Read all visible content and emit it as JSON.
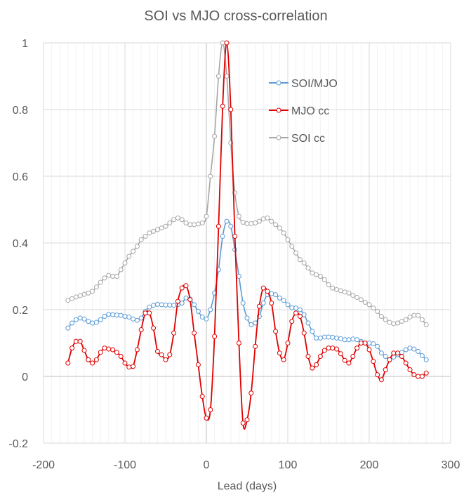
{
  "chart_data": {
    "type": "line",
    "title": "SOI vs MJO cross-correlation",
    "xlabel": "Lead (days)",
    "ylabel": "",
    "xlim": [
      -200,
      300
    ],
    "ylim": [
      -0.2,
      1
    ],
    "x_ticks": [
      "-200",
      "-100",
      "0",
      "100",
      "200",
      "300"
    ],
    "y_ticks": [
      "-0.2",
      "0",
      "0.2",
      "0.4",
      "0.6",
      "0.8",
      "1"
    ],
    "legend_position": "upper-right",
    "grid": true,
    "series": [
      {
        "name": "SOI/MJO",
        "color": "#5B9BD5",
        "x": [
          -170,
          -165,
          -160,
          -155,
          -150,
          -145,
          -140,
          -135,
          -130,
          -125,
          -120,
          -115,
          -110,
          -105,
          -100,
          -95,
          -90,
          -85,
          -80,
          -75,
          -70,
          -65,
          -60,
          -55,
          -50,
          -45,
          -40,
          -35,
          -30,
          -25,
          -20,
          -15,
          -10,
          -5,
          0,
          5,
          10,
          15,
          20,
          25,
          30,
          35,
          40,
          45,
          50,
          55,
          60,
          65,
          70,
          75,
          80,
          85,
          90,
          95,
          100,
          105,
          110,
          115,
          120,
          125,
          130,
          135,
          140,
          145,
          150,
          155,
          160,
          165,
          170,
          175,
          180,
          185,
          190,
          195,
          200,
          205,
          210,
          215,
          220,
          225,
          230,
          235,
          240,
          245,
          250,
          255,
          260,
          265,
          270
        ],
        "y": [
          0.145,
          0.16,
          0.17,
          0.175,
          0.172,
          0.165,
          0.16,
          0.162,
          0.17,
          0.18,
          0.186,
          0.185,
          0.184,
          0.183,
          0.18,
          0.178,
          0.172,
          0.168,
          0.175,
          0.195,
          0.208,
          0.213,
          0.216,
          0.215,
          0.214,
          0.214,
          0.213,
          0.215,
          0.22,
          0.235,
          0.232,
          0.215,
          0.195,
          0.178,
          0.172,
          0.2,
          0.25,
          0.32,
          0.42,
          0.465,
          0.45,
          0.38,
          0.3,
          0.22,
          0.175,
          0.155,
          0.16,
          0.18,
          0.22,
          0.245,
          0.248,
          0.245,
          0.235,
          0.228,
          0.215,
          0.206,
          0.205,
          0.2,
          0.185,
          0.16,
          0.135,
          0.115,
          0.115,
          0.118,
          0.118,
          0.117,
          0.115,
          0.113,
          0.11,
          0.11,
          0.112,
          0.11,
          0.105,
          0.1,
          0.1,
          0.098,
          0.09,
          0.07,
          0.06,
          0.05,
          0.058,
          0.065,
          0.072,
          0.08,
          0.085,
          0.082,
          0.075,
          0.062,
          0.05
        ]
      },
      {
        "name": "MJO cc",
        "color": "#E00000",
        "x": [
          -170,
          -165,
          -160,
          -155,
          -150,
          -145,
          -140,
          -135,
          -130,
          -125,
          -120,
          -115,
          -110,
          -105,
          -100,
          -95,
          -90,
          -85,
          -80,
          -75,
          -70,
          -65,
          -60,
          -55,
          -50,
          -45,
          -40,
          -35,
          -30,
          -25,
          -20,
          -15,
          -10,
          -5,
          0,
          5,
          10,
          15,
          20,
          25,
          30,
          35,
          40,
          45,
          50,
          55,
          60,
          65,
          70,
          75,
          80,
          85,
          90,
          95,
          100,
          105,
          110,
          115,
          120,
          125,
          130,
          135,
          140,
          145,
          150,
          155,
          160,
          165,
          170,
          175,
          180,
          185,
          190,
          195,
          200,
          205,
          210,
          215,
          220,
          225,
          230,
          235,
          240,
          245,
          250,
          255,
          260,
          265,
          270
        ],
        "y": [
          0.04,
          0.085,
          0.105,
          0.105,
          0.078,
          0.05,
          0.04,
          0.05,
          0.072,
          0.085,
          0.082,
          0.08,
          0.072,
          0.06,
          0.04,
          0.028,
          0.03,
          0.08,
          0.14,
          0.19,
          0.19,
          0.145,
          0.075,
          0.065,
          0.05,
          0.065,
          0.13,
          0.225,
          0.265,
          0.272,
          0.23,
          0.13,
          0.035,
          -0.06,
          -0.125,
          -0.1,
          0.12,
          0.45,
          0.81,
          1.0,
          0.8,
          0.42,
          0.1,
          -0.14,
          -0.13,
          -0.05,
          0.09,
          0.21,
          0.265,
          0.255,
          0.22,
          0.135,
          0.07,
          0.05,
          0.1,
          0.165,
          0.19,
          0.18,
          0.13,
          0.06,
          0.025,
          0.035,
          0.06,
          0.078,
          0.085,
          0.085,
          0.082,
          0.068,
          0.048,
          0.04,
          0.06,
          0.085,
          0.1,
          0.1,
          0.08,
          0.045,
          0.005,
          -0.01,
          0.02,
          0.05,
          0.07,
          0.07,
          0.06,
          0.04,
          0.02,
          0.005,
          0.0,
          0.0,
          0.01
        ]
      },
      {
        "name": "SOI cc",
        "color": "#A6A6A6",
        "x": [
          -170,
          -165,
          -160,
          -155,
          -150,
          -145,
          -140,
          -135,
          -130,
          -125,
          -120,
          -115,
          -110,
          -105,
          -100,
          -95,
          -90,
          -85,
          -80,
          -75,
          -70,
          -65,
          -60,
          -55,
          -50,
          -45,
          -40,
          -35,
          -30,
          -25,
          -20,
          -15,
          -10,
          -5,
          0,
          5,
          10,
          15,
          20,
          25,
          30,
          35,
          40,
          45,
          50,
          55,
          60,
          65,
          70,
          75,
          80,
          85,
          90,
          95,
          100,
          105,
          110,
          115,
          120,
          125,
          130,
          135,
          140,
          145,
          150,
          155,
          160,
          165,
          170,
          175,
          180,
          185,
          190,
          195,
          200,
          205,
          210,
          215,
          220,
          225,
          230,
          235,
          240,
          245,
          250,
          255,
          260,
          265,
          270
        ],
        "y": [
          0.228,
          0.233,
          0.238,
          0.242,
          0.246,
          0.25,
          0.255,
          0.268,
          0.282,
          0.295,
          0.303,
          0.3,
          0.3,
          0.32,
          0.34,
          0.36,
          0.375,
          0.39,
          0.41,
          0.42,
          0.43,
          0.435,
          0.44,
          0.445,
          0.45,
          0.46,
          0.47,
          0.475,
          0.47,
          0.46,
          0.455,
          0.455,
          0.457,
          0.46,
          0.48,
          0.6,
          0.72,
          0.9,
          1.0,
          0.9,
          0.7,
          0.55,
          0.48,
          0.462,
          0.458,
          0.458,
          0.46,
          0.465,
          0.472,
          0.475,
          0.465,
          0.455,
          0.445,
          0.43,
          0.41,
          0.39,
          0.37,
          0.35,
          0.34,
          0.325,
          0.31,
          0.305,
          0.3,
          0.29,
          0.275,
          0.265,
          0.26,
          0.257,
          0.253,
          0.25,
          0.243,
          0.237,
          0.23,
          0.222,
          0.215,
          0.205,
          0.195,
          0.18,
          0.17,
          0.162,
          0.158,
          0.16,
          0.165,
          0.17,
          0.178,
          0.183,
          0.183,
          0.17,
          0.155
        ]
      }
    ]
  }
}
